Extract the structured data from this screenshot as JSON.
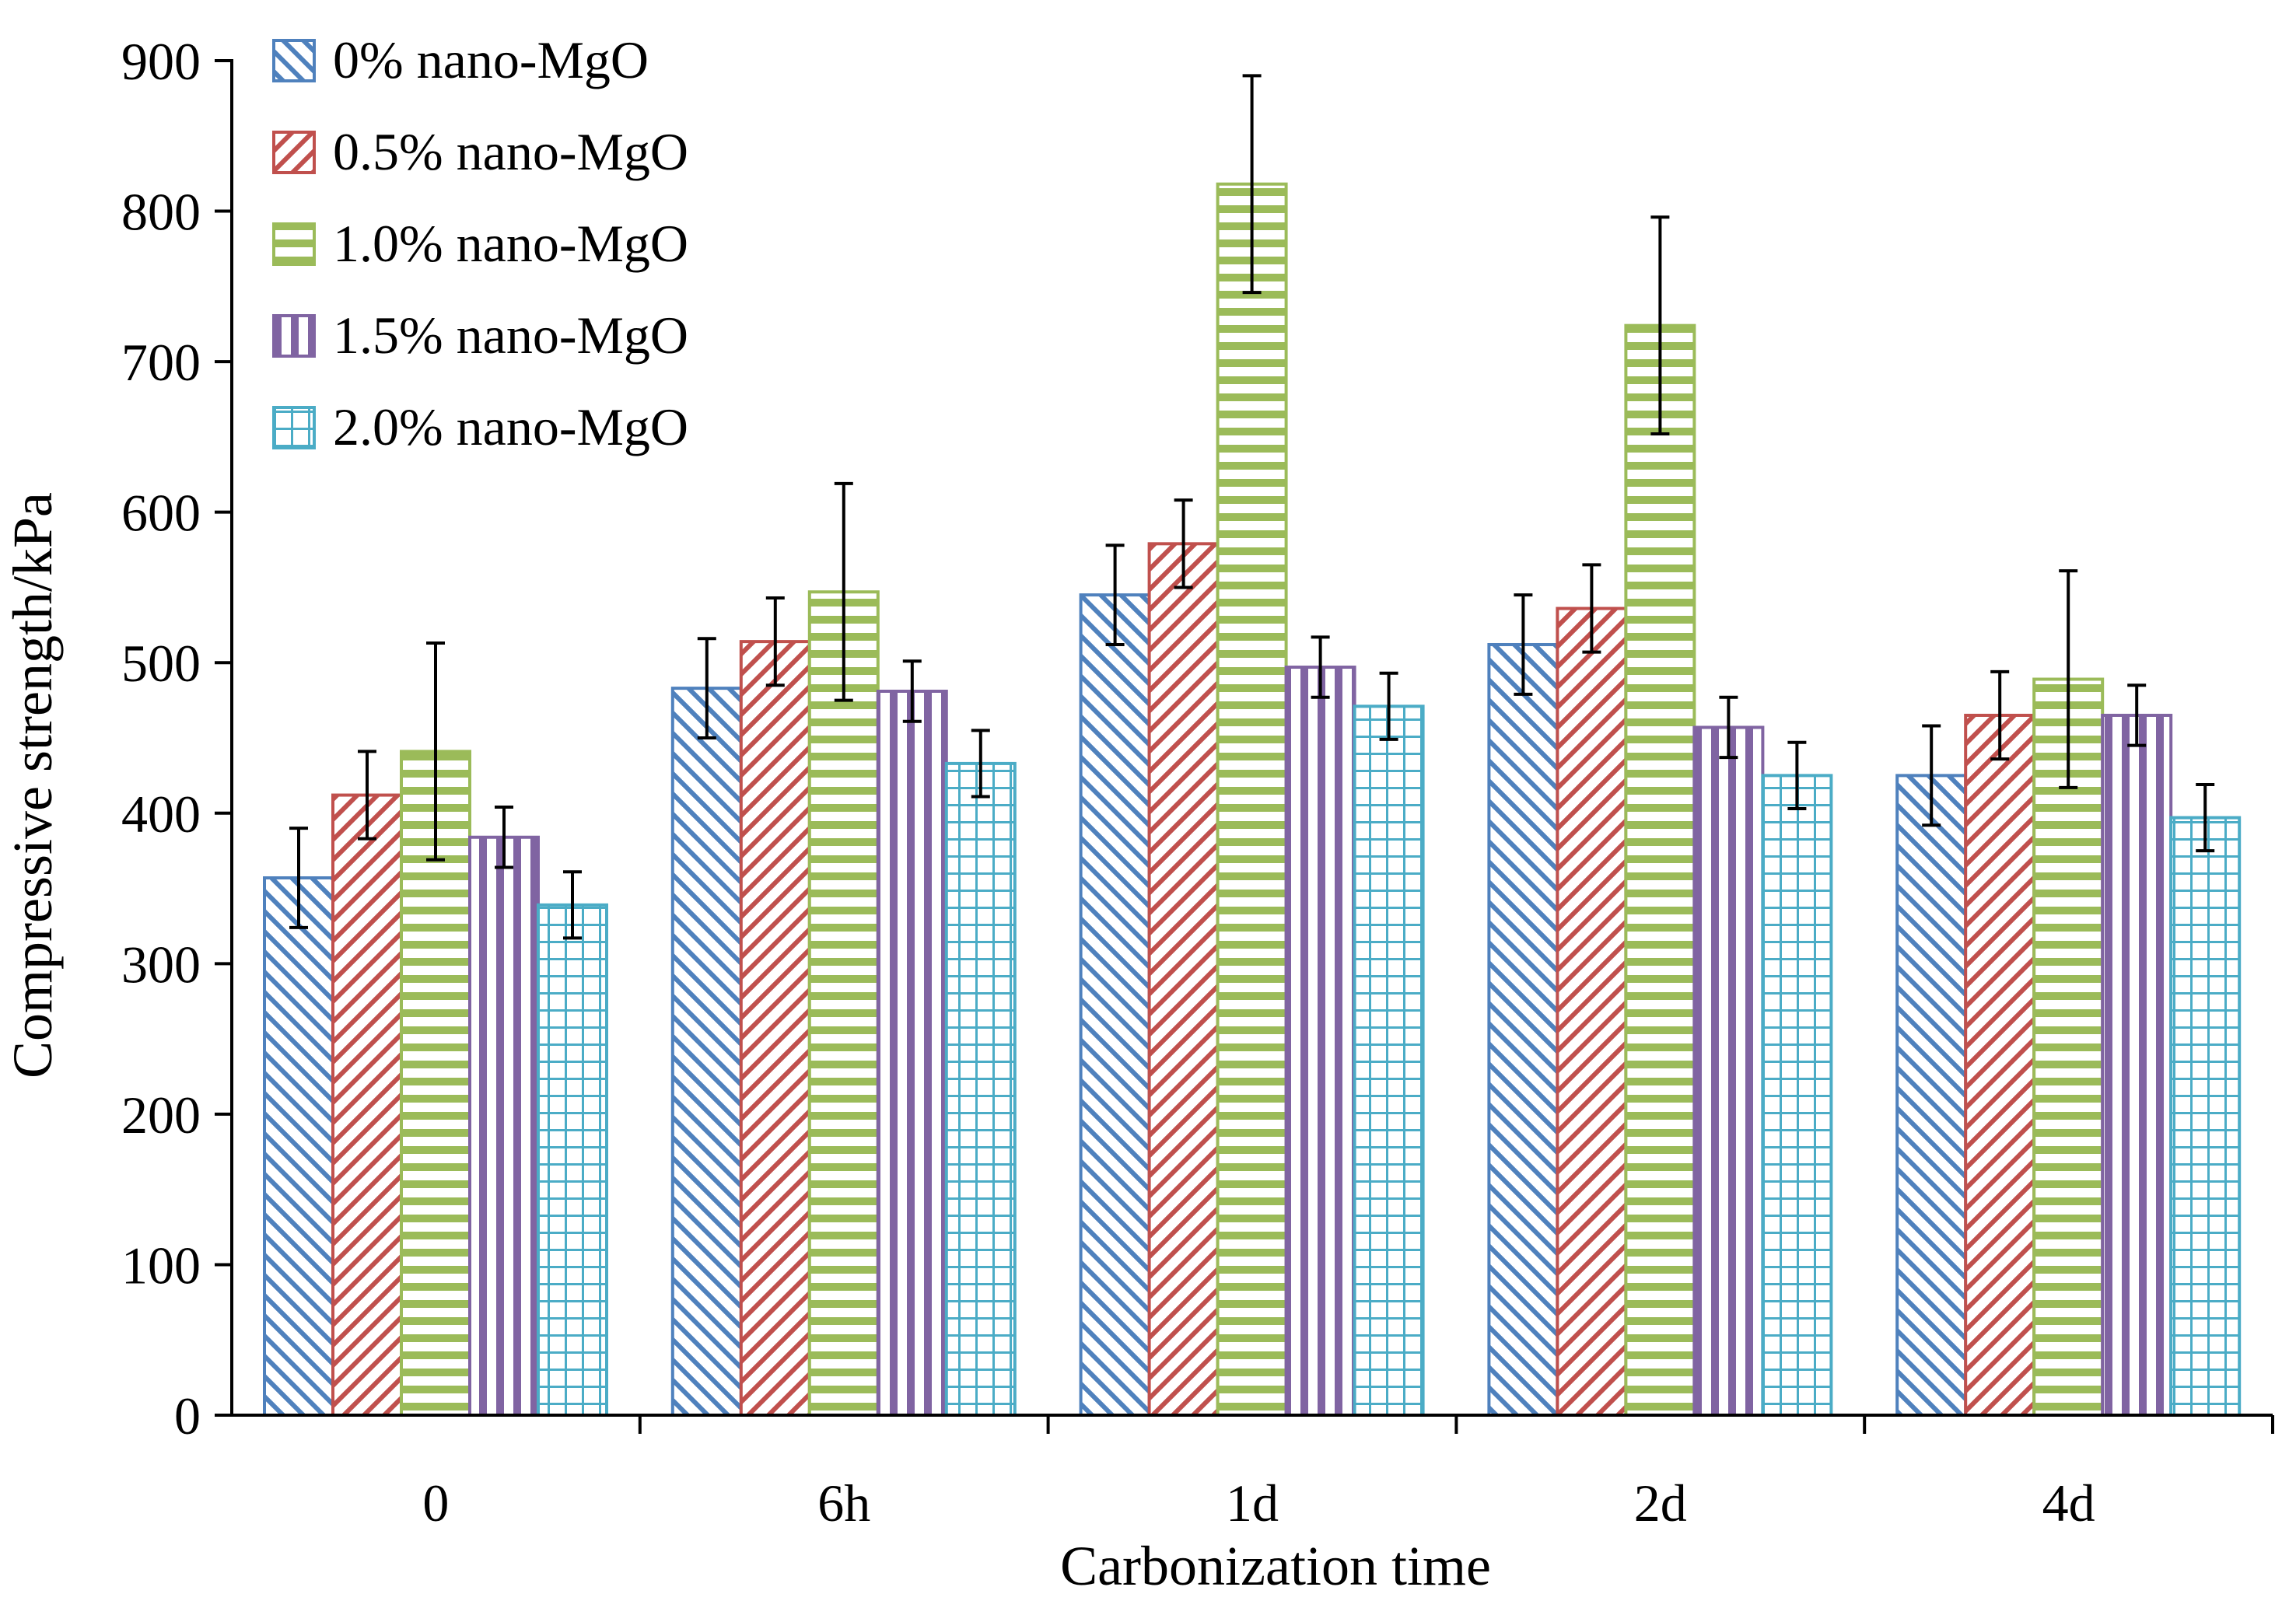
{
  "chart_data": {
    "type": "bar",
    "xlabel": "Carbonization time",
    "ylabel": "Compressive strength/kPa",
    "ylim": [
      0,
      900
    ],
    "yticks": [
      0,
      100,
      200,
      300,
      400,
      500,
      600,
      700,
      800,
      900
    ],
    "categories": [
      "0",
      "6h",
      "1d",
      "2d",
      "4d"
    ],
    "legend_position": "top-left",
    "series": [
      {
        "name": "0% nano-MgO",
        "color": "#4F81BD",
        "pattern": "diag-down",
        "values": [
          357,
          483,
          545,
          512,
          425
        ],
        "errors": [
          33,
          33,
          33,
          33,
          33
        ]
      },
      {
        "name": "0.5% nano-MgO",
        "color": "#C0504D",
        "pattern": "diag-up",
        "values": [
          412,
          514,
          579,
          536,
          465
        ],
        "errors": [
          29,
          29,
          29,
          29,
          29
        ]
      },
      {
        "name": "1.0% nano-MgO",
        "color": "#9BBB59",
        "pattern": "horizontal",
        "values": [
          441,
          547,
          818,
          724,
          489
        ],
        "errors": [
          72,
          72,
          72,
          72,
          72
        ]
      },
      {
        "name": "1.5% nano-MgO",
        "color": "#8064A2",
        "pattern": "vertical",
        "values": [
          384,
          481,
          497,
          457,
          465
        ],
        "errors": [
          20,
          20,
          20,
          20,
          20
        ]
      },
      {
        "name": "2.0% nano-MgO",
        "color": "#4BACC6",
        "pattern": "grid",
        "values": [
          339,
          433,
          471,
          425,
          397
        ],
        "errors": [
          22,
          22,
          22,
          22,
          22
        ]
      }
    ]
  }
}
